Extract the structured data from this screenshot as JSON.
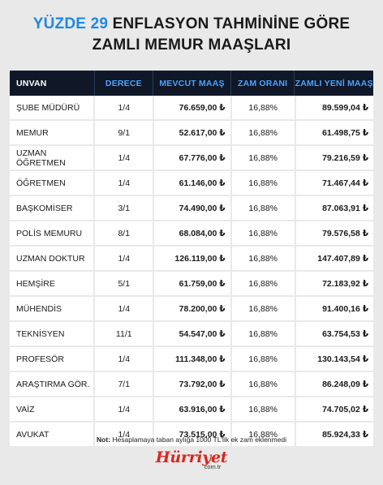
{
  "title": {
    "accent": "YÜZDE 29",
    "line1_rest": " ENFLASYON TAHMİNİNE GÖRE",
    "line2": "ZAMLI MEMUR MAAŞLARI"
  },
  "table": {
    "headers": [
      "UNVAN",
      "DERECE",
      "MEVCUT MAAŞ",
      "ZAM ORANI",
      "ZAMLI YENİ MAAŞ"
    ],
    "rows": [
      [
        "ŞUBE MÜDÜRÜ",
        "1/4",
        "76.659,00 ₺",
        "16,88%",
        "89.599,04 ₺"
      ],
      [
        "MEMUR",
        "9/1",
        "52.617,00 ₺",
        "16,88%",
        "61.498,75 ₺"
      ],
      [
        "UZMAN ÖĞRETMEN",
        "1/4",
        "67.776,00 ₺",
        "16,88%",
        "79.216,59 ₺"
      ],
      [
        "ÖĞRETMEN",
        "1/4",
        "61.146,00 ₺",
        "16,88%",
        "71.467,44 ₺"
      ],
      [
        "BAŞKOMİSER",
        "3/1",
        "74.490,00 ₺",
        "16,88%",
        "87.063,91 ₺"
      ],
      [
        "POLİS MEMURU",
        "8/1",
        "68.084,00 ₺",
        "16,88%",
        "79.576,58 ₺"
      ],
      [
        "UZMAN DOKTUR",
        "1/4",
        "126.119,00 ₺",
        "16,88%",
        "147.407,89 ₺"
      ],
      [
        "HEMŞİRE",
        "5/1",
        "61.759,00 ₺",
        "16,88%",
        "72.183,92 ₺"
      ],
      [
        "MÜHENDİS",
        "1/4",
        "78.200,00 ₺",
        "16,88%",
        "91.400,16 ₺"
      ],
      [
        "TEKNİSYEN",
        "11/1",
        "54.547,00 ₺",
        "16,88%",
        "63.754,53 ₺"
      ],
      [
        "PROFESÖR",
        "1/4",
        "111.348,00 ₺",
        "16,88%",
        "130.143,54 ₺"
      ],
      [
        "ARAŞTIRMA GÖR.",
        "7/1",
        "73.792,00 ₺",
        "16,88%",
        "86.248,09 ₺"
      ],
      [
        "VAİZ",
        "1/4",
        "63.916,00 ₺",
        "16,88%",
        "74.705,02 ₺"
      ],
      [
        "AVUKAT",
        "1/4",
        "73.515,00 ₺",
        "16,88%",
        "85.924,33 ₺"
      ]
    ]
  },
  "note": {
    "label": "Not:",
    "text": " Hesaplamaya taban aylığa 1000 TL'lik ek zam eklenmedi"
  },
  "logo": {
    "brand": "Hürriyet",
    "sub": "com.tr"
  },
  "colors": {
    "accent": "#1e88e5",
    "header_bg": "#101828",
    "brand_red": "#d7281f"
  }
}
